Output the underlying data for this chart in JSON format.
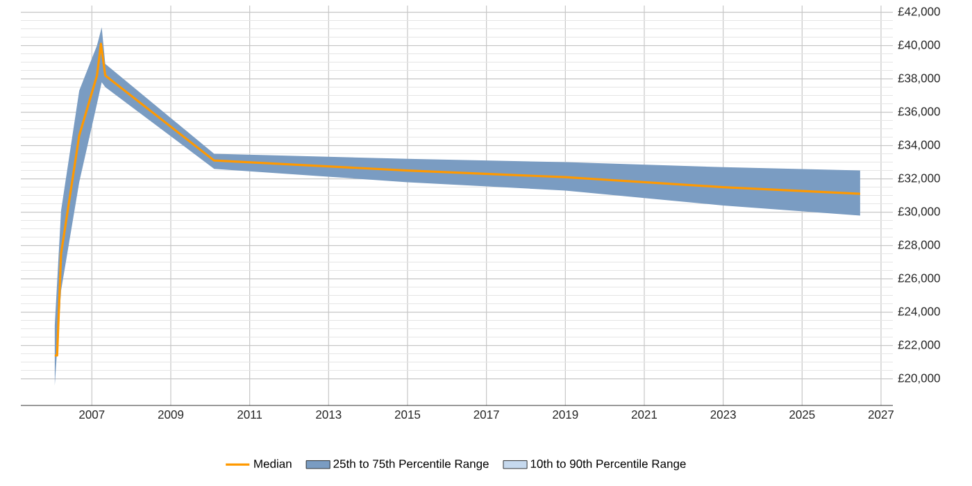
{
  "chart_data": {
    "type": "line",
    "xlim": [
      2005.2,
      2027.3
    ],
    "xticks": [
      2007,
      2009,
      2011,
      2013,
      2015,
      2017,
      2019,
      2021,
      2023,
      2025,
      2027
    ],
    "ylim": [
      18400,
      42400
    ],
    "yticks": [
      {
        "value": 20000,
        "label": "£20,000"
      },
      {
        "value": 22000,
        "label": "£22,000"
      },
      {
        "value": 24000,
        "label": "£24,000"
      },
      {
        "value": 26000,
        "label": "£26,000"
      },
      {
        "value": 28000,
        "label": "£28,000"
      },
      {
        "value": 30000,
        "label": "£30,000"
      },
      {
        "value": 32000,
        "label": "£32,000"
      },
      {
        "value": 34000,
        "label": "£34,000"
      },
      {
        "value": 36000,
        "label": "£36,000"
      },
      {
        "value": 38000,
        "label": "£38,000"
      },
      {
        "value": 40000,
        "label": "£40,000"
      },
      {
        "value": 42000,
        "label": "£42,000"
      }
    ],
    "grid": true,
    "legend": "bottom",
    "marker": "none",
    "line_style": "solid",
    "series": [
      {
        "name": "Median",
        "color": "#ff9900",
        "x": [
          2006.06,
          2006.12,
          2006.22,
          2006.68,
          2007.13,
          2007.23,
          2007.34,
          2010.1,
          2015,
          2019,
          2023,
          2026.47
        ],
        "values": [
          21400,
          21400,
          27500,
          34600,
          38200,
          40100,
          38200,
          33100,
          32500,
          32100,
          31500,
          31100
        ]
      },
      {
        "name": "25th to 75th Percentile Range",
        "type": "area",
        "color": "#7a9cc2",
        "x": [
          2006.06,
          2006.22,
          2006.68,
          2007.13,
          2007.25,
          2007.34,
          2010.1,
          2015,
          2019,
          2023,
          2026.47
        ],
        "values": [
          null,
          null,
          null,
          null,
          null,
          null,
          null,
          null,
          null,
          null,
          null
        ],
        "lower": [
          19600,
          25300,
          31800,
          36500,
          37800,
          37500,
          32600,
          31800,
          31300,
          30400,
          29800
        ],
        "upper": [
          23200,
          30100,
          37300,
          40000,
          41100,
          38900,
          33500,
          33200,
          33000,
          32700,
          32500
        ]
      },
      {
        "name": "10th to 90th Percentile Range",
        "type": "area",
        "color": "#c6d9ee"
      }
    ]
  }
}
